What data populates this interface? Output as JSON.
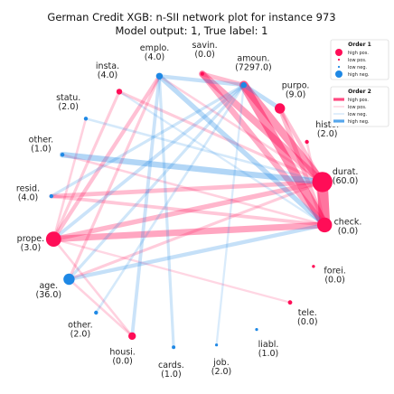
{
  "chart_data": {
    "type": "network",
    "title": "German Credit XGB: n-SII network plot for instance 973",
    "subtitle": "Model output: 1, True label: 1",
    "colors": {
      "positive": "#ff0d57",
      "negative": "#1e88e5"
    },
    "nodes": [
      {
        "name": "durat.",
        "value": "(60.0)",
        "sign": "pos",
        "strength": 1.0
      },
      {
        "name": "check.",
        "value": "(0.0)",
        "sign": "pos",
        "strength": 0.7
      },
      {
        "name": "forei.",
        "value": "(0.0)",
        "sign": "pos",
        "strength": 0.05
      },
      {
        "name": "tele.",
        "value": "(0.0)",
        "sign": "pos",
        "strength": 0.12
      },
      {
        "name": "liabl.",
        "value": "(1.0)",
        "sign": "neg",
        "strength": 0.04
      },
      {
        "name": "job.",
        "value": "(2.0)",
        "sign": "neg",
        "strength": 0.04
      },
      {
        "name": "cards.",
        "value": "(1.0)",
        "sign": "neg",
        "strength": 0.08
      },
      {
        "name": "housi.",
        "value": "(0.0)",
        "sign": "pos",
        "strength": 0.3
      },
      {
        "name": "other.",
        "value": "(2.0)",
        "sign": "neg",
        "strength": 0.1
      },
      {
        "name": "age.",
        "value": "(36.0)",
        "sign": "neg",
        "strength": 0.5
      },
      {
        "name": "prope.",
        "value": "(3.0)",
        "sign": "pos",
        "strength": 0.72
      },
      {
        "name": "resid.",
        "value": "(4.0)",
        "sign": "neg",
        "strength": 0.1
      },
      {
        "name": "other.",
        "value": "(1.0)",
        "sign": "neg",
        "strength": 0.1
      },
      {
        "name": "statu.",
        "value": "(2.0)",
        "sign": "neg",
        "strength": 0.1
      },
      {
        "name": "insta.",
        "value": "(4.0)",
        "sign": "pos",
        "strength": 0.2
      },
      {
        "name": "emplo.",
        "value": "(4.0)",
        "sign": "neg",
        "strength": 0.25
      },
      {
        "name": "savin.",
        "value": "(0.0)",
        "sign": "pos",
        "strength": 0.08
      },
      {
        "name": "amoun.",
        "value": "(7297.0)",
        "sign": "neg",
        "strength": 0.2
      },
      {
        "name": "purpo.",
        "value": "(9.0)",
        "sign": "pos",
        "strength": 0.45
      },
      {
        "name": "histo.",
        "value": "(2.0)",
        "sign": "pos",
        "strength": 0.1
      }
    ],
    "edges": [
      {
        "from": 0,
        "to": 1,
        "sign": "pos",
        "strength": 1.0
      },
      {
        "from": 17,
        "to": 1,
        "sign": "pos",
        "strength": 0.8
      },
      {
        "from": 17,
        "to": 0,
        "sign": "pos",
        "strength": 0.7
      },
      {
        "from": 16,
        "to": 0,
        "sign": "pos",
        "strength": 0.6
      },
      {
        "from": 16,
        "to": 1,
        "sign": "pos",
        "strength": 0.5
      },
      {
        "from": 16,
        "to": 17,
        "sign": "pos",
        "strength": 0.35
      },
      {
        "from": 18,
        "to": 1,
        "sign": "pos",
        "strength": 0.35
      },
      {
        "from": 18,
        "to": 0,
        "sign": "pos",
        "strength": 0.3
      },
      {
        "from": 10,
        "to": 1,
        "sign": "pos",
        "strength": 0.55
      },
      {
        "from": 10,
        "to": 0,
        "sign": "pos",
        "strength": 0.4
      },
      {
        "from": 11,
        "to": 0,
        "sign": "pos",
        "strength": 0.35
      },
      {
        "from": 11,
        "to": 1,
        "sign": "pos",
        "strength": 0.25
      },
      {
        "from": 15,
        "to": 10,
        "sign": "pos",
        "strength": 0.3
      },
      {
        "from": 15,
        "to": 9,
        "sign": "pos",
        "strength": 0.2
      },
      {
        "from": 14,
        "to": 0,
        "sign": "pos",
        "strength": 0.2
      },
      {
        "from": 14,
        "to": 10,
        "sign": "pos",
        "strength": 0.2
      },
      {
        "from": 9,
        "to": 0,
        "sign": "pos",
        "strength": 0.2
      },
      {
        "from": 9,
        "to": 7,
        "sign": "pos",
        "strength": 0.15
      },
      {
        "from": 10,
        "to": 7,
        "sign": "pos",
        "strength": 0.15
      },
      {
        "from": 13,
        "to": 10,
        "sign": "pos",
        "strength": 0.15
      },
      {
        "from": 12,
        "to": 1,
        "sign": "pos",
        "strength": 0.15
      },
      {
        "from": 10,
        "to": 3,
        "sign": "pos",
        "strength": 0.12
      },
      {
        "from": 15,
        "to": 0,
        "sign": "pos",
        "strength": 0.15
      },
      {
        "from": 19,
        "to": 1,
        "sign": "pos",
        "strength": 0.15
      },
      {
        "from": 12,
        "to": 0,
        "sign": "neg",
        "strength": 0.5
      },
      {
        "from": 15,
        "to": 1,
        "sign": "neg",
        "strength": 0.4
      },
      {
        "from": 17,
        "to": 18,
        "sign": "neg",
        "strength": 0.35
      },
      {
        "from": 15,
        "to": 17,
        "sign": "neg",
        "strength": 0.3
      },
      {
        "from": 9,
        "to": 1,
        "sign": "neg",
        "strength": 0.3
      },
      {
        "from": 15,
        "to": 7,
        "sign": "neg",
        "strength": 0.25
      },
      {
        "from": 10,
        "to": 17,
        "sign": "neg",
        "strength": 0.25
      },
      {
        "from": 15,
        "to": 6,
        "sign": "neg",
        "strength": 0.2
      },
      {
        "from": 9,
        "to": 17,
        "sign": "neg",
        "strength": 0.2
      },
      {
        "from": 11,
        "to": 17,
        "sign": "neg",
        "strength": 0.2
      },
      {
        "from": 13,
        "to": 0,
        "sign": "neg",
        "strength": 0.15
      },
      {
        "from": 8,
        "to": 17,
        "sign": "neg",
        "strength": 0.15
      },
      {
        "from": 5,
        "to": 17,
        "sign": "neg",
        "strength": 0.12
      },
      {
        "from": 14,
        "to": 1,
        "sign": "neg",
        "strength": 0.12
      }
    ],
    "legend": [
      {
        "title": "Order 1",
        "kind": "node",
        "items": [
          {
            "label": "high pos.",
            "sign": "pos",
            "strength": 1.0
          },
          {
            "label": "low pos.",
            "sign": "pos",
            "strength": 0.1
          },
          {
            "label": "low neg.",
            "sign": "neg",
            "strength": 0.1
          },
          {
            "label": "high neg.",
            "sign": "neg",
            "strength": 1.0
          }
        ]
      },
      {
        "title": "Order 2",
        "kind": "edge",
        "items": [
          {
            "label": "high pos.",
            "sign": "pos",
            "strength": 1.0
          },
          {
            "label": "low pos.",
            "sign": "pos",
            "strength": 0.1
          },
          {
            "label": "low neg.",
            "sign": "neg",
            "strength": 0.1
          },
          {
            "label": "high neg.",
            "sign": "neg",
            "strength": 1.0
          }
        ]
      }
    ],
    "legend_position": "top-right"
  }
}
